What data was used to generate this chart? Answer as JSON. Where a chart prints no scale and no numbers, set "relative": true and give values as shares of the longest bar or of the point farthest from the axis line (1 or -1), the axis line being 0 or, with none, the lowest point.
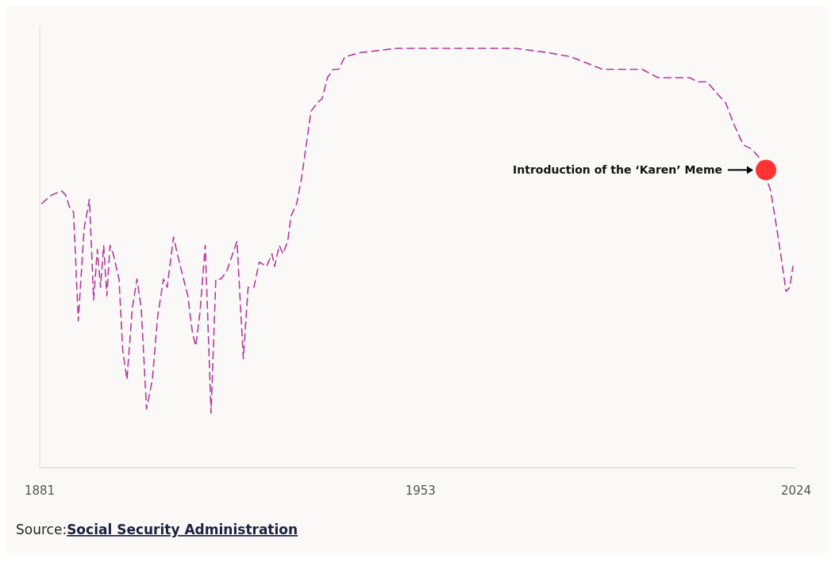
{
  "chart_data": {
    "type": "line",
    "relative": true,
    "line_style": "dashed",
    "marker": "none",
    "grid": false,
    "xlim": [
      1881,
      2024
    ],
    "xticks": [
      1881,
      1953,
      2024
    ],
    "x": [
      1881.4,
      1883.2,
      1885.2,
      1885.9,
      1886.7,
      1887.4,
      1888.3,
      1889.4,
      1890.4,
      1891.2,
      1891.9,
      1892.5,
      1893.1,
      1893.7,
      1894.3,
      1894.9,
      1896.0,
      1896.7,
      1897.5,
      1898.5,
      1899.4,
      1900.2,
      1901.2,
      1902.3,
      1903.3,
      1904.4,
      1905.1,
      1906.3,
      1907.4,
      1909.0,
      1909.9,
      1910.5,
      1911.3,
      1912.3,
      1913.4,
      1914.3,
      1915.3,
      1916.4,
      1918.3,
      1919.5,
      1920.4,
      1921.5,
      1922.5,
      1923.9,
      1924.9,
      1925.4,
      1926.3,
      1927.0,
      1927.9,
      1928.5,
      1929.6,
      1930.5,
      1932.3,
      1933.5,
      1934.4,
      1935.4,
      1936.5,
      1937.5,
      1938.7,
      1941.7,
      1948.5,
      1956.0,
      1960.5,
      1966.5,
      1971.0,
      1977.0,
      1981.4,
      1987.4,
      1991.9,
      1994.9,
      1997.9,
      2000.9,
      2003.9,
      2005.4,
      2007.2,
      2009.2,
      2010.7,
      2012.2,
      2014.0,
      2015.6,
      2017.0,
      2018.3,
      2019.2,
      2020.1,
      2021.2,
      2022.1,
      2022.8,
      2023.4
    ],
    "series": [
      {
        "color": "#b5399f",
        "values": [
          0.63,
          0.65,
          0.66,
          0.65,
          0.62,
          0.61,
          0.35,
          0.57,
          0.64,
          0.4,
          0.52,
          0.43,
          0.53,
          0.41,
          0.53,
          0.51,
          0.45,
          0.28,
          0.21,
          0.38,
          0.45,
          0.38,
          0.14,
          0.21,
          0.36,
          0.45,
          0.43,
          0.55,
          0.49,
          0.41,
          0.32,
          0.29,
          0.37,
          0.53,
          0.13,
          0.45,
          0.45,
          0.47,
          0.54,
          0.26,
          0.43,
          0.43,
          0.49,
          0.48,
          0.51,
          0.48,
          0.53,
          0.51,
          0.54,
          0.6,
          0.63,
          0.69,
          0.85,
          0.87,
          0.88,
          0.93,
          0.95,
          0.95,
          0.98,
          0.99,
          1.0,
          1.0,
          1.0,
          1.0,
          1.0,
          0.99,
          0.98,
          0.95,
          0.95,
          0.95,
          0.93,
          0.93,
          0.93,
          0.92,
          0.92,
          0.89,
          0.87,
          0.82,
          0.77,
          0.76,
          0.74,
          null,
          0.66,
          0.59,
          0.5,
          0.42,
          0.43,
          0.48
        ]
      },
      {
        "type": "scatter",
        "marker": "circle",
        "color": "#ff3333",
        "x": [
          2018.3
        ],
        "values": [
          0.71
        ]
      }
    ],
    "annotations": [
      "Introduction of the ‘Karen’ Meme",
      "Source:Social Security Administration"
    ]
  }
}
